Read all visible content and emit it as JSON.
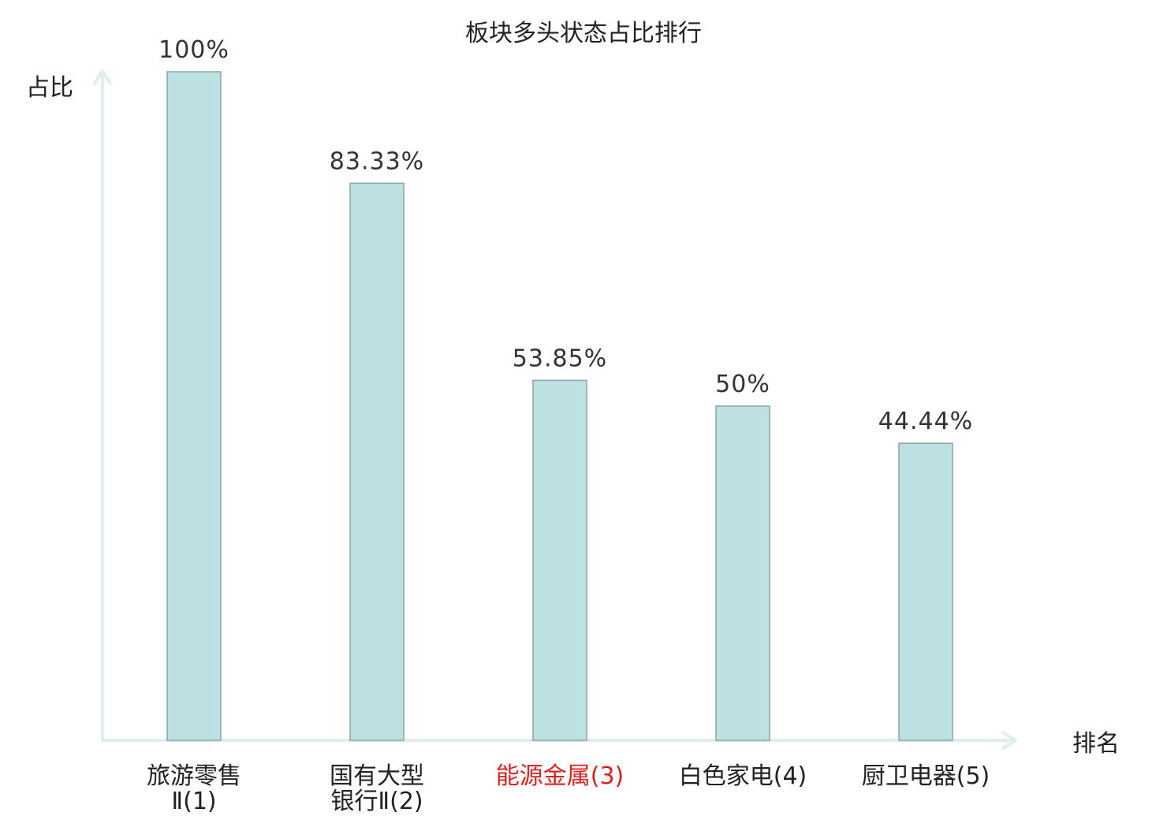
{
  "colors": {
    "bar_fill": "#bde0e2",
    "bar_stroke": "#8aa6a6",
    "axis": "#dff0ec",
    "text": "#222222",
    "highlight_text": "#e0201c"
  },
  "chart_data": {
    "type": "bar",
    "title": "板块多头状态占比排行",
    "ylabel": "占比",
    "xlabel": "排名",
    "ylim": [
      0,
      100
    ],
    "grid": false,
    "categories": [
      [
        "旅游零售",
        "Ⅱ(1)"
      ],
      [
        "国有大型",
        "银行Ⅱ(2)"
      ],
      [
        "能源金属(3)"
      ],
      [
        "白色家电(4)"
      ],
      [
        "厨卫电器(5)"
      ]
    ],
    "highlight_index": 2,
    "values": [
      100,
      83.33,
      53.85,
      50,
      44.44
    ],
    "value_labels": [
      "100%",
      "83.33%",
      "53.85%",
      "50%",
      "44.44%"
    ]
  }
}
